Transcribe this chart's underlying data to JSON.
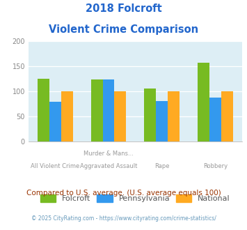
{
  "title_line1": "2018 Folcroft",
  "title_line2": "Violent Crime Comparison",
  "title_color": "#2266cc",
  "row1_labels": [
    "",
    "Murder & Mans...",
    "",
    ""
  ],
  "row2_labels": [
    "All Violent Crime",
    "Aggravated Assault",
    "Rape",
    "Robbery"
  ],
  "folcroft": [
    126,
    124,
    106,
    158
  ],
  "pennsylvania": [
    80,
    124,
    81,
    88
  ],
  "national": [
    100,
    100,
    100,
    100
  ],
  "folcroft_color": "#77bb22",
  "pennsylvania_color": "#3399ee",
  "national_color": "#ffaa22",
  "bg_color": "#ddeef5",
  "ylim": [
    0,
    200
  ],
  "yticks": [
    0,
    50,
    100,
    150,
    200
  ],
  "legend_labels": [
    "Folcroft",
    "Pennsylvania",
    "National"
  ],
  "footnote1": "Compared to U.S. average. (U.S. average equals 100)",
  "footnote1_color": "#993300",
  "footnote2": "© 2025 CityRating.com - https://www.cityrating.com/crime-statistics/",
  "footnote2_color": "#6699bb",
  "bar_width": 0.22
}
